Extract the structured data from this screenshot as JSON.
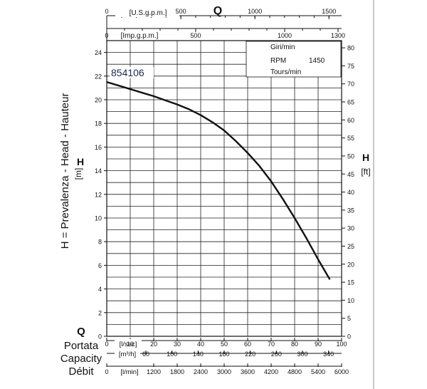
{
  "chart_data": {
    "type": "line",
    "title": "854106",
    "rpm_box": {
      "lines": [
        "Giri/min",
        "RPM",
        "Tours/min"
      ],
      "value": "1450"
    },
    "y_left": {
      "ylabel": "H = Prevalenza - Head - Hauteur",
      "symbol": "H",
      "unit": "[m]",
      "ticks": [
        "0",
        "2",
        "4",
        "6",
        "8",
        "10",
        "12",
        "14",
        "16",
        "18",
        "20",
        "22",
        "24"
      ],
      "ylim": [
        0,
        25
      ]
    },
    "y_right": {
      "symbol": "H",
      "unit": "[ft]",
      "ticks": [
        "0",
        "5",
        "10",
        "15",
        "20",
        "25",
        "30",
        "35",
        "40",
        "45",
        "50",
        "55",
        "60",
        "65",
        "70",
        "75",
        "80"
      ],
      "ylim": [
        0,
        82
      ]
    },
    "x_top_1": {
      "symbol": "Q",
      "unit": "[U.S.g.p.m.]",
      "ticks": [
        "0",
        "500",
        "1000",
        "1500"
      ],
      "xlim": [
        0,
        1585
      ]
    },
    "x_top_2": {
      "unit": "[Imp.g.p.m.]",
      "ticks": [
        "0",
        "500",
        "1000",
        "1300"
      ],
      "xlim": [
        0,
        1320
      ]
    },
    "x_bottom_1": {
      "symbol": "Q",
      "unit": "[l/sec]",
      "ticks": [
        "0",
        "10",
        "20",
        "30",
        "40",
        "50",
        "60",
        "70",
        "80",
        "90",
        "100"
      ],
      "xlim": [
        0,
        100
      ]
    },
    "x_bottom_2": {
      "unit": "[m³/h]",
      "ticks": [
        "60",
        "100",
        "140",
        "180",
        "220",
        "260",
        "300",
        "340"
      ],
      "xlim": [
        0,
        360
      ]
    },
    "x_bottom_3": {
      "unit": "[l/min]",
      "ticks": [
        "0",
        "1200",
        "1800",
        "2400",
        "3000",
        "3600",
        "4200",
        "4800",
        "5400",
        "6000"
      ],
      "xlim": [
        0,
        6000
      ]
    },
    "capacity_labels": [
      "Portata",
      "Capacity",
      "Débit"
    ],
    "grid": true,
    "series": [
      {
        "x": [
          0,
          5,
          10,
          15,
          20,
          25,
          30,
          35,
          40,
          45,
          50,
          55,
          60,
          65,
          70,
          75,
          80,
          85,
          90,
          95
        ],
        "y": [
          21.5,
          21.2,
          20.9,
          20.6,
          20.3,
          19.95,
          19.6,
          19.2,
          18.7,
          18.1,
          17.4,
          16.5,
          15.5,
          14.4,
          13.1,
          11.6,
          10.0,
          8.3,
          6.5,
          4.8
        ],
        "color": "#111111"
      }
    ]
  }
}
